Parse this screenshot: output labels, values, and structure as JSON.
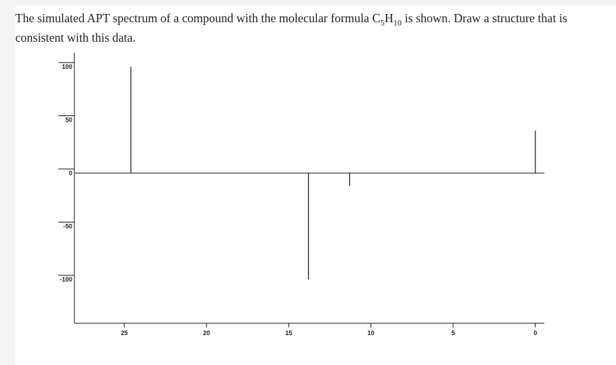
{
  "question": {
    "p1": "The simulated APT spectrum of a compound with the molecular formula C",
    "sub1": "5",
    "p2": "H",
    "sub2": "10",
    "p3": " is shown. Draw a structure that is consistent with this data."
  },
  "chart_data": {
    "type": "bar",
    "title": "",
    "xlabel": "",
    "ylabel": "",
    "x_reversed": true,
    "xlim": [
      30,
      0
    ],
    "ylim": [
      -145,
      100
    ],
    "x_ticks": [
      25,
      20,
      15,
      10,
      5,
      0
    ],
    "y_ticks": [
      100,
      50,
      0,
      -50,
      -100
    ],
    "peaks": [
      {
        "x": 24.6,
        "y": 100
      },
      {
        "x": 13.8,
        "y": -100
      },
      {
        "x": 11.3,
        "y": -12
      },
      {
        "x": 0.0,
        "y": 40
      }
    ]
  }
}
